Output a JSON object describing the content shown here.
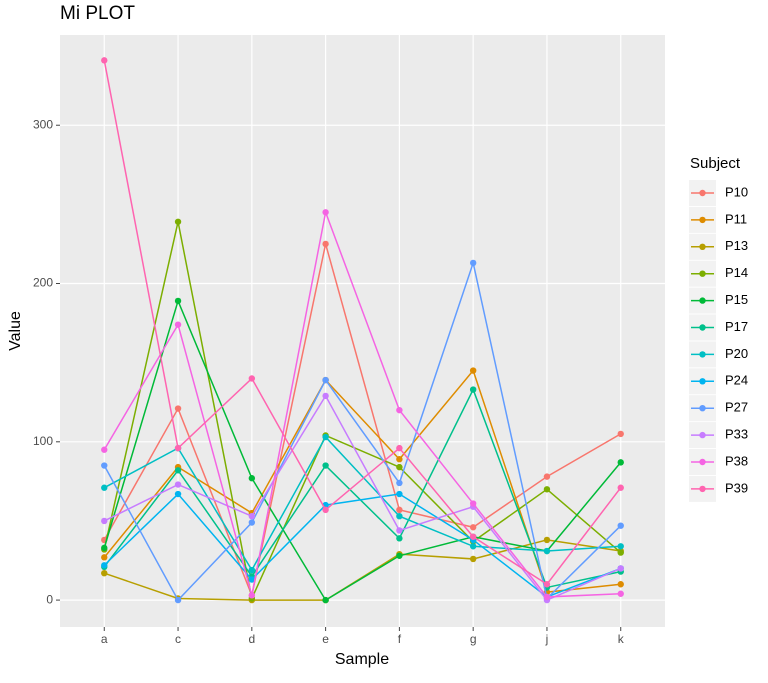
{
  "chart_data": {
    "type": "line",
    "title": "Mi PLOT",
    "x_label": "Sample",
    "y_label": "Value",
    "categories": [
      "a",
      "c",
      "d",
      "e",
      "f",
      "g",
      "j",
      "k"
    ],
    "ylim": [
      -17,
      357
    ],
    "yticks": [
      0,
      100,
      200,
      300
    ],
    "grid": true,
    "legend_title": "Subject",
    "legend_position": "right",
    "series": [
      {
        "name": "P10",
        "color": "#F8766D",
        "values": [
          38,
          121,
          3,
          225,
          57,
          46,
          78,
          105
        ]
      },
      {
        "name": "P11",
        "color": "#DE8C00",
        "values": [
          27,
          84,
          55,
          139,
          89,
          145,
          5,
          10
        ]
      },
      {
        "name": "P13",
        "color": "#B79F00",
        "values": [
          17,
          1,
          0,
          0,
          29,
          26,
          38,
          31
        ]
      },
      {
        "name": "P14",
        "color": "#7CAE00",
        "values": [
          32,
          239,
          1,
          104,
          84,
          37,
          70,
          30
        ]
      },
      {
        "name": "P15",
        "color": "#00BA38",
        "values": [
          33,
          189,
          77,
          0,
          28,
          40,
          31,
          87
        ]
      },
      {
        "name": "P17",
        "color": "#00C08B",
        "values": [
          21,
          82,
          15,
          85,
          39,
          133,
          8,
          18
        ]
      },
      {
        "name": "P20",
        "color": "#00BFC4",
        "values": [
          71,
          96,
          19,
          103,
          53,
          34,
          31,
          34
        ]
      },
      {
        "name": "P24",
        "color": "#00B4F0",
        "values": [
          22,
          67,
          13,
          60,
          67,
          38,
          2,
          20
        ]
      },
      {
        "name": "P27",
        "color": "#619CFF",
        "values": [
          85,
          0,
          49,
          139,
          74,
          213,
          1,
          47
        ]
      },
      {
        "name": "P33",
        "color": "#C77CFF",
        "values": [
          50,
          73,
          53,
          129,
          44,
          59,
          0,
          20
        ]
      },
      {
        "name": "P38",
        "color": "#F564E3",
        "values": [
          95,
          174,
          3,
          245,
          120,
          61,
          2,
          4
        ]
      },
      {
        "name": "P39",
        "color": "#FF64B0",
        "values": [
          341,
          96,
          140,
          57,
          96,
          40,
          10,
          71
        ]
      }
    ]
  }
}
